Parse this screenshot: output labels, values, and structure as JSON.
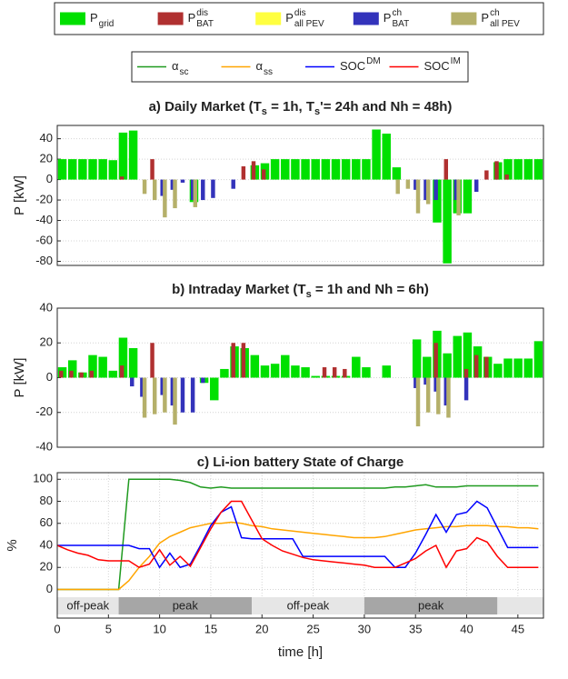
{
  "chart_data": [
    {
      "type": "bar",
      "legend": "top",
      "title": [
        {
          "text": "a) Daily Market (T"
        },
        {
          "text": "s",
          "sub": true
        },
        {
          "text": " = 1h, T"
        },
        {
          "text": "s",
          "sub": true
        },
        {
          "text": "'= 24h and Nh = 48h)"
        }
      ],
      "ylabel": "P [kW]",
      "categories": [
        null,
        null,
        null,
        null,
        null,
        null,
        null,
        null,
        null,
        null,
        null,
        null,
        null,
        null,
        null,
        null,
        null,
        null,
        null,
        null,
        null,
        null,
        null,
        null,
        null,
        null,
        null,
        null,
        null,
        null,
        null,
        null,
        null,
        null,
        null,
        null,
        null,
        null,
        null,
        null,
        null,
        null,
        null,
        null,
        null,
        null,
        null,
        null
      ],
      "ylim": [
        -84,
        53
      ],
      "yticks": [
        -80,
        -60,
        -40,
        -20,
        0,
        20,
        40
      ],
      "grid": true,
      "series": [
        {
          "name": "P",
          "sub": "grid",
          "color": "#00e000",
          "values": [
            20,
            20,
            20,
            20,
            20,
            19,
            46,
            48,
            0,
            0,
            0,
            0,
            0,
            -22,
            0,
            0,
            0,
            0,
            0,
            14,
            16,
            20,
            20,
            20,
            20,
            20,
            20,
            20,
            20,
            20,
            20,
            49,
            45,
            12,
            0,
            0,
            0,
            -42,
            -82,
            -33,
            -33,
            0,
            0,
            17,
            20,
            20,
            20,
            20
          ]
        },
        {
          "name": "P",
          "sup": "dis",
          "sub": "BAT",
          "color": "#b03030",
          "values": [
            0,
            0,
            0,
            0,
            0,
            0,
            3,
            0,
            0,
            20,
            0,
            0,
            0,
            0,
            0,
            0,
            0,
            0,
            13,
            18,
            10,
            0,
            0,
            0,
            0,
            0,
            0,
            0,
            0,
            0,
            0,
            0,
            0,
            0,
            0,
            0,
            0,
            0,
            20,
            0,
            0,
            0,
            9,
            18,
            5,
            0,
            0,
            0
          ]
        },
        {
          "name": "P",
          "sup": "dis",
          "sub": "all PEV",
          "color": "#ffff40",
          "values": [
            0,
            0,
            0,
            0,
            0,
            0,
            0,
            0,
            0,
            0,
            0,
            0,
            0,
            0,
            0,
            0,
            0,
            0,
            0,
            0,
            0,
            0,
            0,
            0,
            0,
            0,
            0,
            0,
            0,
            0,
            0,
            0,
            0,
            0,
            0,
            0,
            0,
            0,
            0,
            0,
            0,
            0,
            0,
            0,
            0,
            0,
            0,
            0
          ]
        },
        {
          "name": "P",
          "sup": "ch",
          "sub": "BAT",
          "color": "#3333bb",
          "values": [
            0,
            0,
            0,
            0,
            0,
            0,
            0,
            0,
            0,
            0,
            -16,
            -10,
            -3,
            -20,
            -20,
            -18,
            0,
            -9,
            0,
            0,
            0,
            0,
            0,
            0,
            0,
            0,
            0,
            0,
            0,
            0,
            0,
            0,
            0,
            0,
            0,
            -10,
            -20,
            -20,
            0,
            -20,
            0,
            -12,
            0,
            0,
            0,
            0,
            0,
            0
          ]
        },
        {
          "name": "P",
          "sup": "ch",
          "sub": "all PEV",
          "color": "#b5b06a",
          "values": [
            0,
            0,
            0,
            0,
            0,
            0,
            0,
            0,
            -14,
            -20,
            -37,
            -28,
            0,
            -27,
            0,
            0,
            0,
            0,
            0,
            0,
            0,
            0,
            0,
            0,
            0,
            0,
            0,
            0,
            0,
            0,
            0,
            0,
            0,
            -14,
            -9,
            -33,
            -24,
            0,
            0,
            -35,
            0,
            0,
            0,
            0,
            0,
            0,
            0,
            0
          ]
        }
      ]
    },
    {
      "type": "bar",
      "title": [
        {
          "text": "b) Intraday Market (T"
        },
        {
          "text": "s",
          "sub": true
        },
        {
          "text": " = 1h and Nh = 6h)"
        }
      ],
      "ylabel": "P [kW]",
      "categories": [
        null,
        null,
        null,
        null,
        null,
        null,
        null,
        null,
        null,
        null,
        null,
        null,
        null,
        null,
        null,
        null,
        null,
        null,
        null,
        null,
        null,
        null,
        null,
        null,
        null,
        null,
        null,
        null,
        null,
        null,
        null,
        null,
        null,
        null,
        null,
        null,
        null,
        null,
        null,
        null,
        null,
        null,
        null,
        null,
        null,
        null,
        null,
        null
      ],
      "ylim": [
        -40,
        40
      ],
      "yticks": [
        -40,
        -20,
        0,
        20,
        40
      ],
      "grid": true,
      "series": [
        {
          "color": "#00e000",
          "values": [
            6,
            10,
            3,
            13,
            12,
            4,
            23,
            17,
            0,
            0,
            0,
            0,
            0,
            0,
            -3,
            -13,
            5,
            18,
            17,
            13,
            7,
            8,
            13,
            7,
            6,
            1,
            1,
            1,
            1,
            12,
            6,
            0,
            7,
            0,
            0,
            22,
            12,
            27,
            14,
            24,
            26,
            18,
            12,
            8,
            11,
            11,
            11,
            21
          ]
        },
        {
          "color": "#b03030",
          "values": [
            4,
            4,
            3,
            4,
            0,
            0,
            7,
            0,
            0,
            20,
            0,
            0,
            0,
            0,
            0,
            0,
            0,
            20,
            20,
            0,
            0,
            0,
            0,
            0,
            0,
            0,
            6,
            6,
            5,
            0,
            0,
            0,
            0,
            0,
            0,
            0,
            0,
            20,
            0,
            0,
            5,
            13,
            12,
            0,
            0,
            0,
            0,
            0
          ]
        },
        {
          "color": "#ffff40",
          "values": [
            0,
            0,
            0,
            0,
            0,
            0,
            0,
            0,
            0,
            0,
            0,
            0,
            0,
            0,
            0,
            0,
            0,
            0,
            0,
            0,
            0,
            0,
            0,
            0,
            0,
            0,
            0,
            0,
            0,
            0,
            0,
            0,
            0,
            0,
            0,
            0,
            0,
            0,
            0,
            0,
            0,
            0,
            0,
            0,
            0,
            0,
            0,
            0
          ]
        },
        {
          "color": "#3333bb",
          "values": [
            0,
            0,
            0,
            0,
            0,
            0,
            0,
            -5,
            -11,
            0,
            -10,
            -16,
            -20,
            -20,
            -3,
            0,
            0,
            0,
            0,
            0,
            0,
            0,
            0,
            0,
            0,
            0,
            0,
            0,
            0,
            0,
            0,
            0,
            0,
            0,
            0,
            -6,
            -4,
            -8,
            -16,
            0,
            -13,
            0,
            0,
            0,
            0,
            0,
            0,
            0
          ]
        },
        {
          "color": "#b5b06a",
          "values": [
            0,
            0,
            0,
            0,
            0,
            0,
            0,
            0,
            -23,
            -21,
            -20,
            -27,
            0,
            0,
            0,
            0,
            0,
            0,
            0,
            0,
            0,
            0,
            0,
            0,
            0,
            0,
            0,
            0,
            0,
            0,
            0,
            0,
            0,
            0,
            0,
            -28,
            -20,
            -21,
            -23,
            0,
            0,
            0,
            0,
            0,
            0,
            0,
            0,
            0
          ]
        }
      ]
    },
    {
      "type": "line",
      "legend": "top",
      "title": [
        {
          "text": "c) Li-ion battery State of Charge"
        }
      ],
      "ylabel": "%",
      "xlabel": "time [h]",
      "x": [
        0,
        1,
        2,
        3,
        4,
        5,
        6,
        7,
        8,
        9,
        10,
        11,
        12,
        13,
        14,
        15,
        16,
        17,
        18,
        19,
        20,
        21,
        22,
        23,
        24,
        25,
        26,
        27,
        28,
        29,
        30,
        31,
        32,
        33,
        34,
        35,
        36,
        37,
        38,
        39,
        40,
        41,
        42,
        43,
        44,
        45,
        46,
        47
      ],
      "xlim": [
        0,
        47.5
      ],
      "xticks": [
        0,
        5,
        10,
        15,
        20,
        25,
        30,
        35,
        40,
        45
      ],
      "ylim": [
        -26,
        106
      ],
      "yticks": [
        0,
        20,
        40,
        60,
        80,
        100
      ],
      "grid": true,
      "periods": [
        {
          "label": "off-peak",
          "start": 0,
          "end": 6,
          "color": "#e6e6e6"
        },
        {
          "label": "peak",
          "start": 6,
          "end": 19,
          "color": "#a6a6a6"
        },
        {
          "label": "off-peak",
          "start": 19,
          "end": 30,
          "color": "#e6e6e6"
        },
        {
          "label": "peak",
          "start": 30,
          "end": 43,
          "color": "#a6a6a6"
        },
        {
          "label": null,
          "start": 43,
          "end": 47.5,
          "color": "#e6e6e6"
        }
      ],
      "series": [
        {
          "name": "α",
          "sub": "sc",
          "color": "#1f9a1f",
          "values": [
            0,
            0,
            0,
            0,
            0,
            0,
            0,
            100,
            100,
            100,
            100,
            100,
            99,
            97,
            93,
            92,
            93,
            92,
            92,
            92,
            92,
            92,
            92,
            92,
            92,
            92,
            92,
            92,
            92,
            92,
            92,
            92,
            92,
            93,
            93,
            94,
            95,
            93,
            93,
            93,
            94,
            94,
            94,
            94,
            94,
            94,
            94,
            94
          ]
        },
        {
          "name": "α",
          "sub": "ss",
          "color": "#ffa500",
          "values": [
            0,
            0,
            0,
            0,
            0,
            0,
            0,
            8,
            20,
            30,
            42,
            48,
            52,
            56,
            58,
            60,
            60,
            61,
            60,
            58,
            57,
            55,
            54,
            53,
            52,
            51,
            50,
            49,
            48,
            47,
            47,
            47,
            48,
            50,
            52,
            54,
            55,
            56,
            57,
            57,
            58,
            58,
            58,
            57,
            57,
            56,
            56,
            55
          ]
        },
        {
          "name": "SOC",
          "sup": "DM",
          "color": "#0000ff",
          "values": [
            40,
            40,
            40,
            40,
            40,
            40,
            40,
            40,
            37,
            37,
            20,
            33,
            20,
            23,
            40,
            58,
            70,
            75,
            47,
            46,
            46,
            46,
            46,
            46,
            30,
            30,
            30,
            30,
            30,
            30,
            30,
            30,
            30,
            20,
            20,
            33,
            50,
            68,
            52,
            68,
            70,
            80,
            74,
            56,
            38,
            38,
            38,
            38
          ]
        },
        {
          "name": "SOC",
          "sup": "IM",
          "color": "#ff0000",
          "values": [
            40,
            36,
            33,
            31,
            27,
            26,
            26,
            26,
            20,
            23,
            36,
            22,
            30,
            21,
            38,
            55,
            70,
            80,
            80,
            63,
            46,
            40,
            35,
            32,
            29,
            27,
            26,
            25,
            24,
            23,
            22,
            20,
            20,
            20,
            24,
            28,
            35,
            40,
            20,
            35,
            37,
            47,
            43,
            30,
            20,
            20,
            20,
            20
          ]
        }
      ]
    }
  ]
}
